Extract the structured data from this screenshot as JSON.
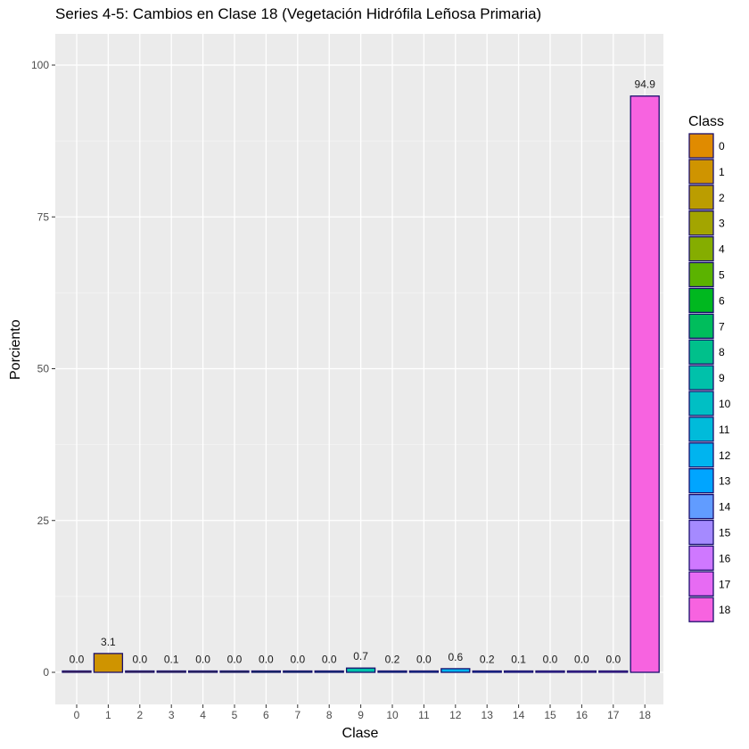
{
  "chart_data": {
    "type": "bar",
    "title": "Series 4-5: Cambios en Clase 18 (Vegetación Hidrófila Leñosa Primaria)",
    "xlabel": "Clase",
    "ylabel": "Porciento",
    "ylim": [
      -5,
      104
    ],
    "yticks": [
      0,
      25,
      50,
      75,
      100
    ],
    "categories": [
      "0",
      "1",
      "2",
      "3",
      "4",
      "5",
      "6",
      "7",
      "8",
      "9",
      "10",
      "11",
      "12",
      "13",
      "14",
      "15",
      "16",
      "17",
      "18"
    ],
    "values": [
      0.0,
      3.1,
      0.0,
      0.1,
      0.0,
      0.0,
      0.0,
      0.0,
      0.0,
      0.7,
      0.2,
      0.0,
      0.6,
      0.2,
      0.1,
      0.0,
      0.0,
      0.0,
      94.9
    ],
    "value_labels": [
      "0.0",
      "3.1",
      "0.0",
      "0.1",
      "0.0",
      "0.0",
      "0.0",
      "0.0",
      "0.0",
      "0.7",
      "0.2",
      "0.0",
      "0.6",
      "0.2",
      "0.1",
      "0.0",
      "0.0",
      "0.0",
      "94.9"
    ],
    "colors": [
      "#E08B00",
      "#CF9400",
      "#BB9D00",
      "#A3A500",
      "#85AD00",
      "#5BB300",
      "#00B81F",
      "#00BD5C",
      "#00C08B",
      "#00C1AA",
      "#00BFC4",
      "#00BBDA",
      "#00B4EF",
      "#00A5FF",
      "#619CFF",
      "#A58AFF",
      "#CF78FF",
      "#E76BF3",
      "#F763E0"
    ],
    "bar_outline": "#1a0f6e",
    "legend": {
      "title": "Class",
      "entries": [
        "0",
        "1",
        "2",
        "3",
        "4",
        "5",
        "6",
        "7",
        "8",
        "9",
        "10",
        "11",
        "12",
        "13",
        "14",
        "15",
        "16",
        "17",
        "18"
      ],
      "placement": "right"
    },
    "grid": true,
    "panel_background": "#EBEBEB"
  }
}
